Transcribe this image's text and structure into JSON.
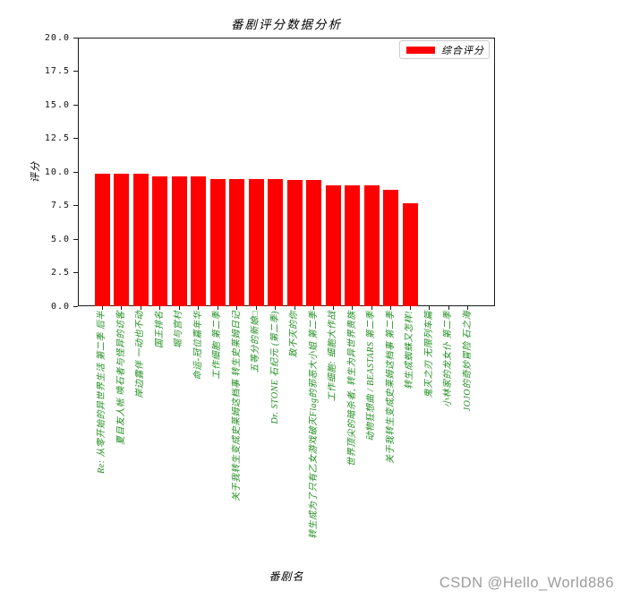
{
  "figure": {
    "title": "番剧评分数据分析",
    "watermark": "CSDN @Hello_World886"
  },
  "legend": {
    "label": "综合评分"
  },
  "axes": {
    "y_label": "评分",
    "x_label": "番剧名",
    "y_ticks": [
      "0.0",
      "2.5",
      "5.0",
      "7.5",
      "10.0",
      "12.5",
      "15.0",
      "17.5",
      "20.0"
    ]
  },
  "colors": {
    "bar": "#ff0000",
    "xtick_label": "#1e8e1e",
    "watermark": "#9c9c9c"
  },
  "chart_data": {
    "type": "bar",
    "title": "番剧评分数据分析",
    "xlabel": "番剧名",
    "ylabel": "评分",
    "ylim": [
      0,
      20
    ],
    "grid": false,
    "legend_position": "upper right",
    "legend": [
      "综合评分"
    ],
    "categories": [
      "Re: 从零开始的异世界生活 第二季 后半",
      "夏目友人帐 唤石者与怪异的访客",
      "岸边露伴 一动也不动",
      "国王排名",
      "堀与宫村",
      "命运-冠位嘉年华",
      "工作细胞 第二季",
      "关于我转生变成史莱姆这档事 转生史莱姆日记",
      "五等分的新娘□",
      "Dr. STONE 石纪元 (第二季)",
      "致不灭的你",
      "转生成为了只有乙女游戏破灭Flag的邪恶大小姐 第二季",
      "工作细胞: 细胞大作战",
      "世界顶尖的暗杀者, 转生为异世界贵族",
      "动物狂想曲 / BEASTARS 第二季",
      "关于我转生变成史莱姆这档事 第二季",
      "转生成蜘蛛又怎样!",
      "鬼灭之刃 无限列车篇",
      "小林家的龙女仆 第二季",
      "JOJO的奇妙冒险 石之海"
    ],
    "series": [
      {
        "name": "综合评分",
        "color": "#ff0000",
        "values": [
          9.9,
          9.9,
          9.9,
          9.7,
          9.7,
          9.7,
          9.5,
          9.5,
          9.5,
          9.5,
          9.4,
          9.4,
          9.0,
          9.0,
          9.0,
          8.7,
          7.7,
          0,
          0,
          0
        ]
      }
    ]
  }
}
